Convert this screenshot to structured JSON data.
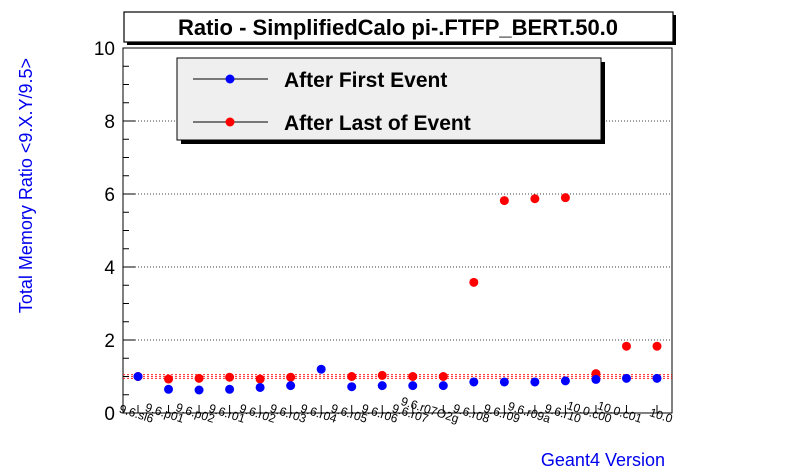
{
  "chart_data": {
    "type": "scatter",
    "title": "Ratio - SimplifiedCalo pi-.FTFP_BERT.50.0",
    "xlabel": "Geant4 Version",
    "ylabel": "Total Memory Ratio <9.X.Y/9.5>",
    "ylim": [
      0,
      10
    ],
    "yticks": [
      "0",
      "2",
      "4",
      "6",
      "8",
      "10"
    ],
    "grid": "horizontal dotted",
    "legend_position": "top-left",
    "axis_title_color": "#0000ee",
    "categories": [
      "9.6.sl6",
      "9.6.p01",
      "9.6.p02",
      "9.6.r01",
      "9.6.r02",
      "9.6.r03",
      "9.6.r04",
      "9.6.r05",
      "9.6.r06",
      "9.6.r07",
      "9.6.r07O2g",
      "9.6.r08",
      "9.6.r09",
      "9.6.r09a",
      "9.6.r10",
      "10.0.c00",
      "10.0.c01",
      "10.0"
    ],
    "series": [
      {
        "name": "After First Event",
        "color": "#0000ff",
        "values": [
          1.0,
          0.65,
          0.63,
          0.65,
          0.7,
          0.75,
          1.2,
          0.72,
          0.75,
          0.75,
          0.75,
          0.85,
          0.85,
          0.85,
          0.88,
          0.92,
          0.95,
          0.95
        ]
      },
      {
        "name": "After Last of Event",
        "color": "#ff0000",
        "values": [
          1.0,
          0.93,
          0.95,
          0.98,
          0.93,
          0.98,
          null,
          1.0,
          1.03,
          1.0,
          1.0,
          3.58,
          5.82,
          5.87,
          5.9,
          1.08,
          1.83,
          1.83
        ]
      }
    ],
    "reference_lines": [
      0.95,
      1.0,
      1.05
    ]
  }
}
